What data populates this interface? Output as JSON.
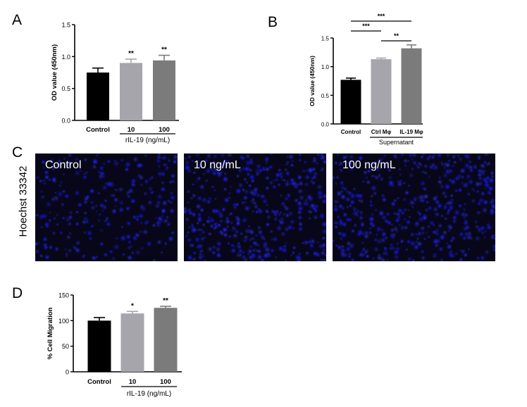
{
  "panels": {
    "a": {
      "letter": "A"
    },
    "b": {
      "letter": "B"
    },
    "c": {
      "letter": "C"
    },
    "d": {
      "letter": "D"
    }
  },
  "images": {
    "stain_label": "Hoechst 33342",
    "labels": [
      "Control",
      "10 ng/mL",
      "100 ng/mL"
    ]
  },
  "chart_data": [
    {
      "id": "A",
      "type": "bar",
      "categories": [
        "Control",
        "10",
        "100"
      ],
      "values": [
        0.75,
        0.9,
        0.94
      ],
      "errors": [
        0.07,
        0.06,
        0.08
      ],
      "significance": [
        "",
        "**",
        "**"
      ],
      "colors": [
        "#000000",
        "#a5a5ab",
        "#7b7b7b"
      ],
      "ylabel": "OD value (450nm)",
      "ylim": [
        0,
        1.5
      ],
      "yticks": [
        "0.0",
        "0.5",
        "1.0",
        "1.5"
      ],
      "group_label": "rIL-19 (ng/mL)",
      "group_categories": [
        1,
        2
      ],
      "brackets": []
    },
    {
      "id": "B",
      "type": "bar",
      "categories": [
        "Control",
        "Ctrl Mφ",
        "IL-19 Mφ"
      ],
      "values": [
        0.77,
        1.13,
        1.32
      ],
      "errors": [
        0.03,
        0.02,
        0.06
      ],
      "significance": [
        "",
        "",
        ""
      ],
      "colors": [
        "#000000",
        "#a5a5ab",
        "#7b7b7b"
      ],
      "ylabel": "OD value (450nm)",
      "ylim": [
        0,
        1.5
      ],
      "yticks": [
        "0.0",
        "0.5",
        "1.0",
        "1.5"
      ],
      "group_label": "Supernatant",
      "group_categories": [
        1,
        2
      ],
      "brackets": [
        {
          "from": 0,
          "to": 2,
          "label": "***",
          "level": 3
        },
        {
          "from": 0,
          "to": 1,
          "label": "***",
          "level": 2
        },
        {
          "from": 1,
          "to": 2,
          "label": "**",
          "level": 1
        }
      ]
    },
    {
      "id": "D",
      "type": "bar",
      "categories": [
        "Control",
        "10",
        "100"
      ],
      "values": [
        100,
        114,
        125
      ],
      "errors": [
        6,
        4,
        3
      ],
      "significance": [
        "",
        "*",
        "**"
      ],
      "colors": [
        "#000000",
        "#a5a5ab",
        "#7b7b7b"
      ],
      "ylabel": "% Cell Migration",
      "ylim": [
        0,
        150
      ],
      "yticks": [
        "0",
        "50",
        "100",
        "150"
      ],
      "group_label": "rIL-19 (ng/mL)",
      "group_categories": [
        1,
        2
      ],
      "brackets": []
    }
  ]
}
